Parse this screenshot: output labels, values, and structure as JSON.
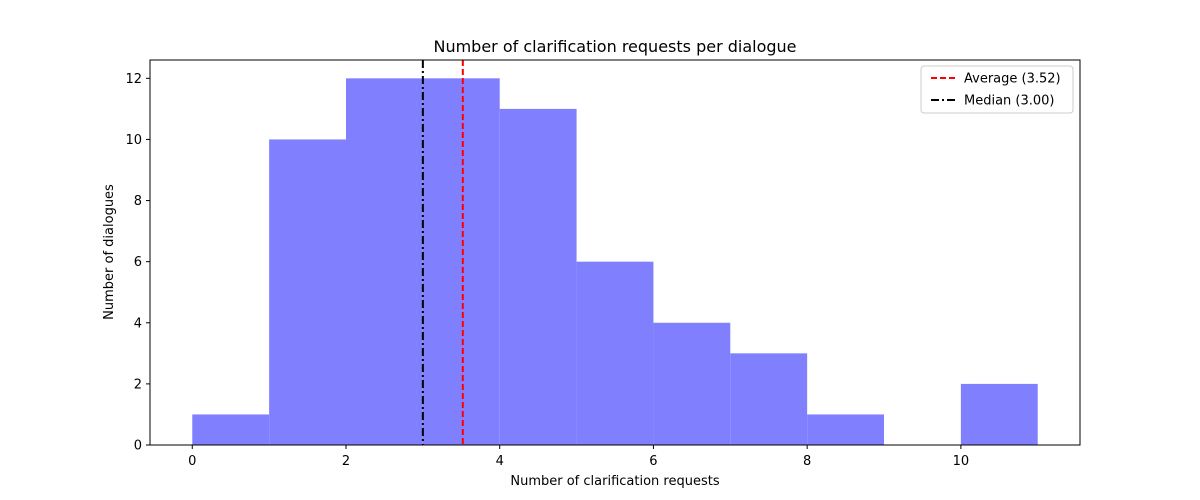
{
  "chart_data": {
    "type": "bar",
    "subtype": "histogram",
    "title": "Number of clarification requests per dialogue",
    "xlabel": "Number of clarification requests",
    "ylabel": "Number of dialogues",
    "xlim": [
      -0.55,
      11.55
    ],
    "ylim": [
      0,
      12.6
    ],
    "xticks": [
      0,
      2,
      4,
      6,
      8,
      10
    ],
    "yticks": [
      0,
      2,
      4,
      6,
      8,
      10,
      12
    ],
    "bin_edges": [
      0,
      1,
      2,
      3,
      4,
      5,
      6,
      7,
      8,
      9,
      10,
      11
    ],
    "values": [
      1,
      10,
      12,
      12,
      11,
      6,
      4,
      3,
      1,
      0,
      2
    ],
    "bar_color": "#8080ff",
    "grid": false,
    "legend_position": "top-right",
    "reference_lines": [
      {
        "label": "Average (3.52)",
        "x": 3.52,
        "color": "#ff0000",
        "style": "dashed"
      },
      {
        "label": "Median (3.00)",
        "x": 3.0,
        "color": "#000000",
        "style": "dashdot"
      }
    ]
  }
}
